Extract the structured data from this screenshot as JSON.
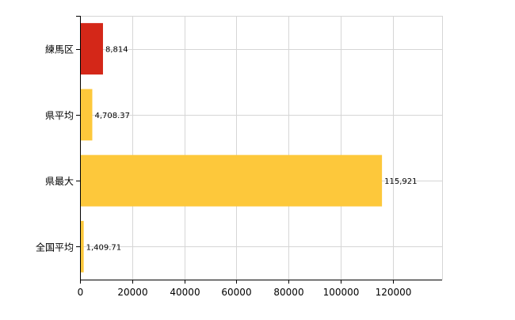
{
  "chart_data": {
    "type": "bar",
    "orientation": "horizontal",
    "categories": [
      "練馬区",
      "県平均",
      "県最大",
      "全国平均"
    ],
    "values": [
      8814,
      4708.37,
      115921,
      1409.71
    ],
    "value_labels": [
      "8,814",
      "4,708.37",
      "115,921",
      "1,409.71"
    ],
    "bar_colors": [
      "#d42718",
      "#fdc83b",
      "#fdc83b",
      "#fdc83b"
    ],
    "x_ticks": [
      0,
      20000,
      40000,
      60000,
      80000,
      100000,
      120000
    ],
    "x_tick_labels": [
      "0",
      "20000",
      "40000",
      "60000",
      "80000",
      "100000",
      "120000"
    ],
    "xlim": [
      0,
      139000
    ],
    "grid": true,
    "legend": "none",
    "title": "",
    "xlabel": "",
    "ylabel": ""
  }
}
